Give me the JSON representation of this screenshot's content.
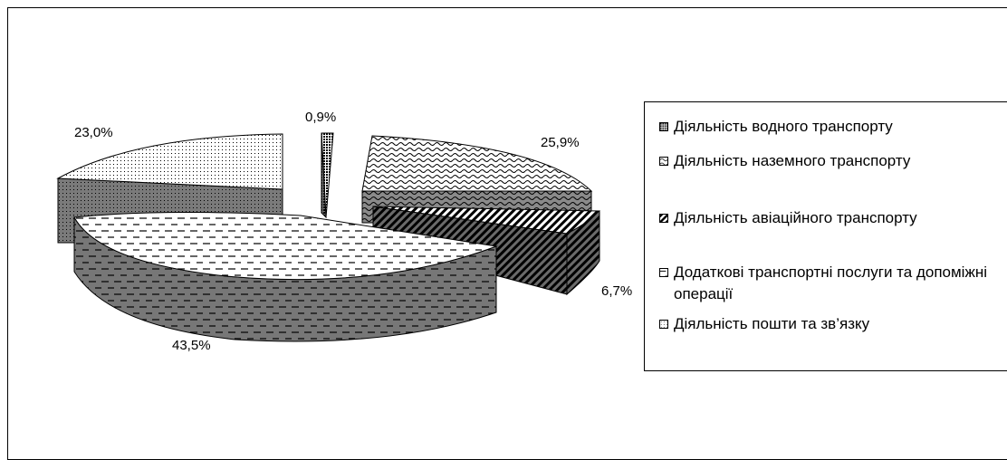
{
  "chart_data": {
    "type": "pie",
    "variant": "3d-exploded",
    "title": "",
    "slices": [
      {
        "label": "Діяльність водного транспорту",
        "value": 0.9,
        "value_label": "0,9%",
        "pattern": "dense-dots"
      },
      {
        "label": "Діяльність наземного транспорту",
        "value": 25.9,
        "value_label": "25,9%",
        "pattern": "waves"
      },
      {
        "label": "Діяльність авіаційного транспорту",
        "value": 6.7,
        "value_label": "6,7%",
        "pattern": "diagonal-stripes"
      },
      {
        "label": "Додаткові транспортні послуги та допоміжні операції",
        "value": 43.5,
        "value_label": "43,5%",
        "pattern": "dashes"
      },
      {
        "label": "Діяльність пошти та зв’язку",
        "value": 23.0,
        "value_label": "23,0%",
        "pattern": "sparse-dots"
      }
    ],
    "legend_position": "right"
  },
  "legend": {
    "items": [
      {
        "label": "Діяльність водного транспорту",
        "icon": "water-transport-swatch"
      },
      {
        "label": "Діяльність наземного транспорту",
        "icon": "land-transport-swatch"
      },
      {
        "label": "Діяльність авіаційного транспорту",
        "icon": "air-transport-swatch"
      },
      {
        "label": "Додаткові транспортні послуги та допоміжні операції",
        "icon": "auxiliary-services-swatch"
      },
      {
        "label": "Діяльність пошти та зв’язку",
        "icon": "postal-communication-swatch"
      }
    ]
  },
  "labels": {
    "water": "0,9%",
    "land": "25,9%",
    "air": "6,7%",
    "aux": "43,5%",
    "post": "23,0%"
  }
}
